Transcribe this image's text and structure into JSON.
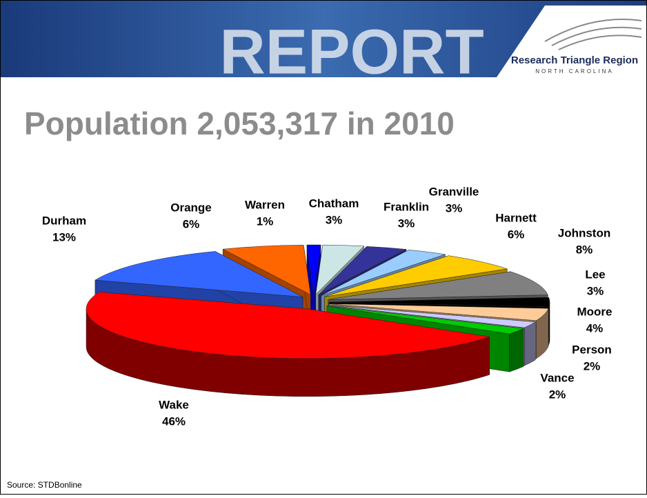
{
  "header": {
    "banner": "REPORT",
    "logo_title": "Research Triangle Region",
    "logo_subtitle": "NORTH CAROLINA"
  },
  "chart_data": {
    "type": "pie3d",
    "title": "Population 2,053,317 in 2010",
    "categories": [
      "Wake",
      "Durham",
      "Orange",
      "Warren",
      "Chatham",
      "Franklin",
      "Granville",
      "Harnett",
      "Johnston",
      "Lee",
      "Moore",
      "Person",
      "Vance"
    ],
    "values": [
      46,
      13,
      6,
      1,
      3,
      3,
      3,
      6,
      8,
      3,
      4,
      2,
      2
    ],
    "value_labels": [
      "46%",
      "13%",
      "6%",
      "1%",
      "3%",
      "3%",
      "3%",
      "6%",
      "8%",
      "3%",
      "4%",
      "2%",
      "2%"
    ],
    "colors": [
      "#ff0000",
      "#3366ff",
      "#ff6600",
      "#0000ff",
      "#cce6e6",
      "#333399",
      "#99ccff",
      "#ffcc00",
      "#808080",
      "#000000",
      "#ffcc99",
      "#ccccff",
      "#00cc00"
    ]
  },
  "footer": {
    "source": "Source: STDBonline"
  }
}
